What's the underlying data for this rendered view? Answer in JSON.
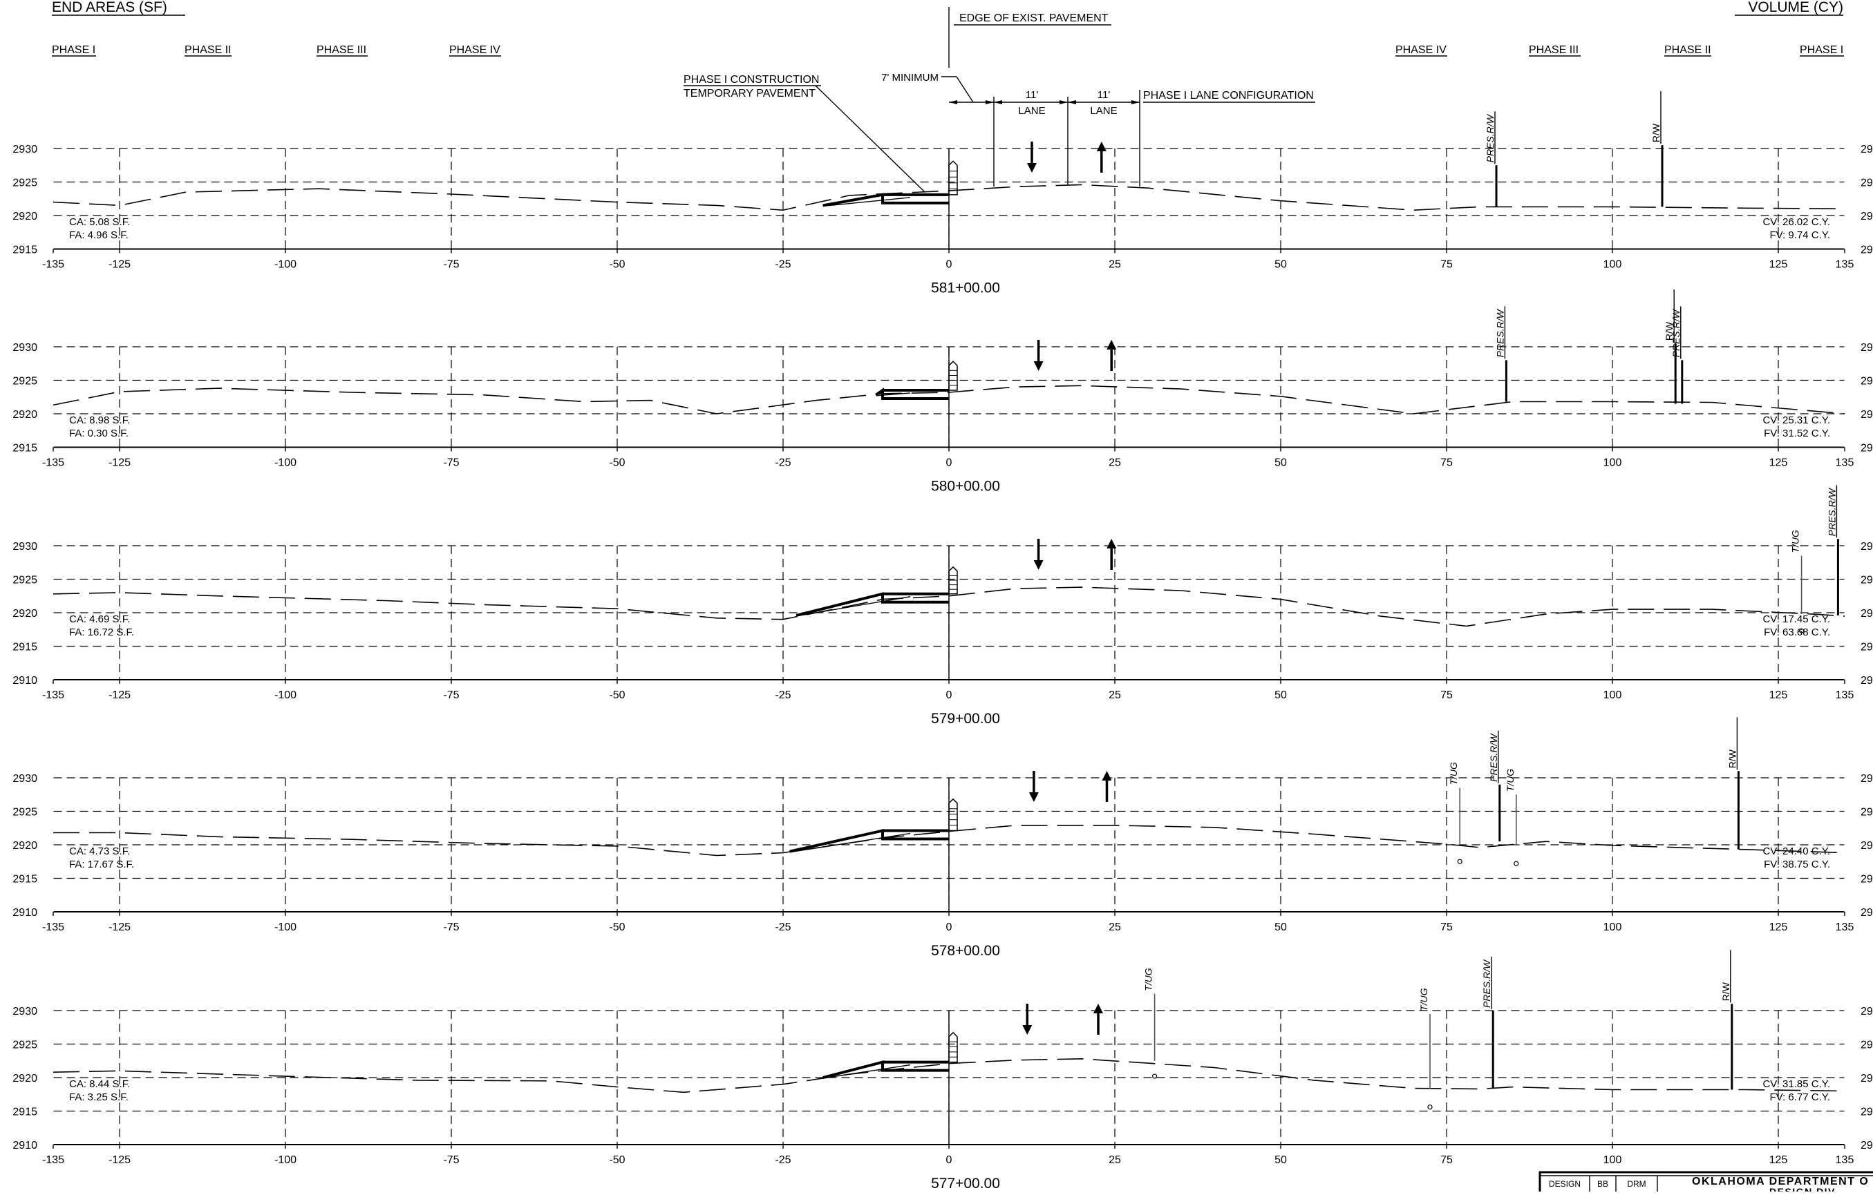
{
  "header": {
    "left_title": "END AREAS (SF)",
    "right_title": "VOLUME (CY)",
    "phases_left": [
      "PHASE I",
      "PHASE II",
      "PHASE III",
      "PHASE IV"
    ],
    "phases_right": [
      "PHASE IV",
      "PHASE III",
      "PHASE II",
      "PHASE I"
    ]
  },
  "annotations": {
    "edge_pavement": "EDGE OF EXIST. PAVEMENT",
    "minimum": "7' MINIMUM",
    "phase1_construction": "PHASE I CONSTRUCTION",
    "temporary_pavement": "TEMPORARY PAVEMENT",
    "lane_width": "11'",
    "lane": "LANE",
    "lane_config": "PHASE I LANE CONFIGURATION"
  },
  "labels": {
    "pres_rw": "PRES.R/W",
    "rw": "R/W",
    "tug": "T/UG"
  },
  "x_ticks": [
    -135,
    -125,
    -100,
    -75,
    -50,
    -25,
    0,
    25,
    50,
    75,
    100,
    125,
    135
  ],
  "x_tick_labels": [
    "-135",
    "-125",
    "-100",
    "-75",
    "-50",
    "-25",
    "0",
    "25",
    "50",
    "75",
    "100",
    "125",
    "135"
  ],
  "sections": [
    {
      "station": "581+00.00",
      "elevations": [
        "2930",
        "2925",
        "2920",
        "2915"
      ],
      "right_elev": [
        "29",
        "29",
        "29",
        "29"
      ],
      "ca": "CA: 5.08 S.F.",
      "fa": "FA: 4.96 S.F.",
      "cv": "CV: 26.02 C.Y.",
      "fv": "FV: 9.74 C.Y."
    },
    {
      "station": "580+00.00",
      "elevations": [
        "2930",
        "2925",
        "2920",
        "2915"
      ],
      "right_elev": [
        "29",
        "29",
        "29",
        "29"
      ],
      "ca": "CA: 8.98 S.F.",
      "fa": "FA: 0.30 S.F.",
      "cv": "CV: 25.31 C.Y.",
      "fv": "FV: 31.52 C.Y."
    },
    {
      "station": "579+00.00",
      "elevations": [
        "2930",
        "2925",
        "2920",
        "2915",
        "2910"
      ],
      "right_elev": [
        "29",
        "29",
        "29",
        "29",
        "29"
      ],
      "ca": "CA: 4.69 S.F.",
      "fa": "FA: 16.72 S.F.",
      "cv": "CV: 17.45 C.Y.",
      "fv": "FV: 63.68 C.Y."
    },
    {
      "station": "578+00.00",
      "elevations": [
        "2930",
        "2925",
        "2920",
        "2915",
        "2910"
      ],
      "right_elev": [
        "29",
        "29",
        "29",
        "29",
        "29"
      ],
      "ca": "CA: 4.73 S.F.",
      "fa": "FA: 17.67 S.F.",
      "cv": "CV: 24.40 C.Y.",
      "fv": "FV: 38.75 C.Y."
    },
    {
      "station": "577+00.00",
      "elevations": [
        "2930",
        "2925",
        "2920",
        "2915",
        "2910"
      ],
      "right_elev": [
        "29",
        "29",
        "29",
        "29",
        "29"
      ],
      "ca": "CA: 8.44 S.F.",
      "fa": "FA: 3.25 S.F.",
      "cv": "CV: 31.85 C.Y.",
      "fv": "FV: 6.77 C.Y."
    }
  ],
  "title_block": {
    "design_label": "DESIGN",
    "initials_1": "BB",
    "initials_2": "DRM",
    "agency": "OKLAHOMA DEPARTMENT O",
    "division": "DESIGN DIV"
  }
}
